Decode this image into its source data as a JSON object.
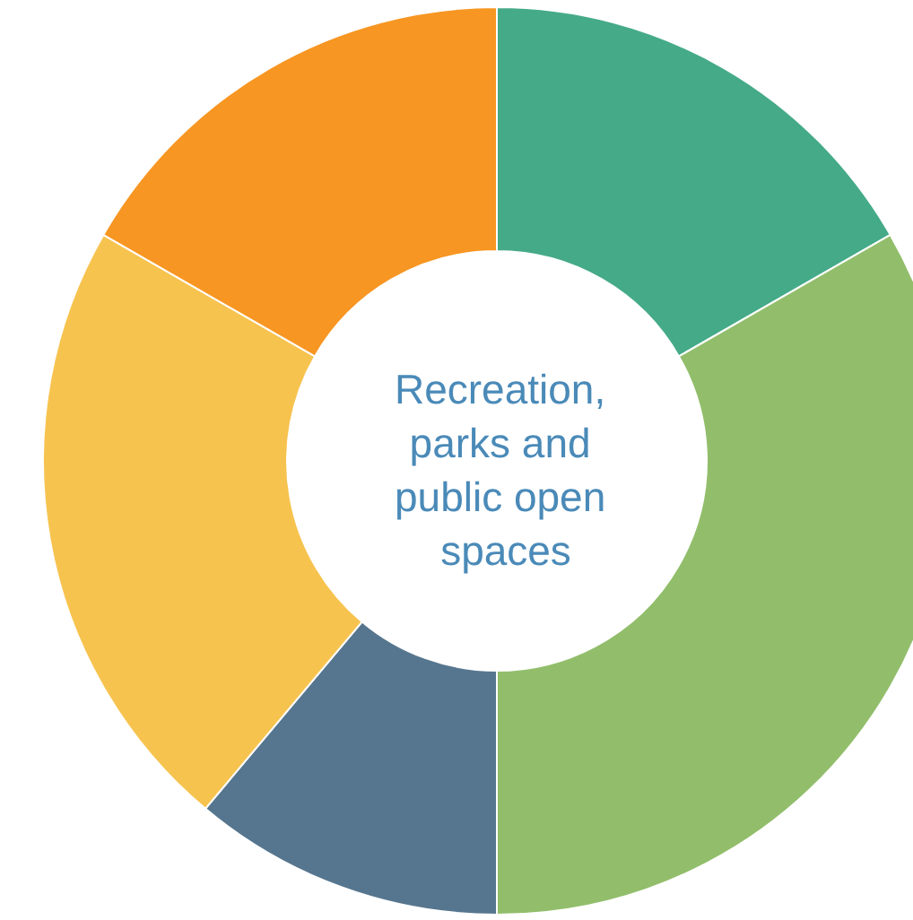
{
  "chart_data": {
    "type": "donut",
    "title": "Recreation, parks and public open spaces",
    "categories": [
      null,
      null,
      null,
      null,
      null
    ],
    "values": [
      16.7,
      33.3,
      11.1,
      22.2,
      16.7
    ],
    "colors": [
      "#45aa88",
      "#92be6b",
      "#56768f",
      "#f7c34f",
      "#f79622"
    ]
  }
}
